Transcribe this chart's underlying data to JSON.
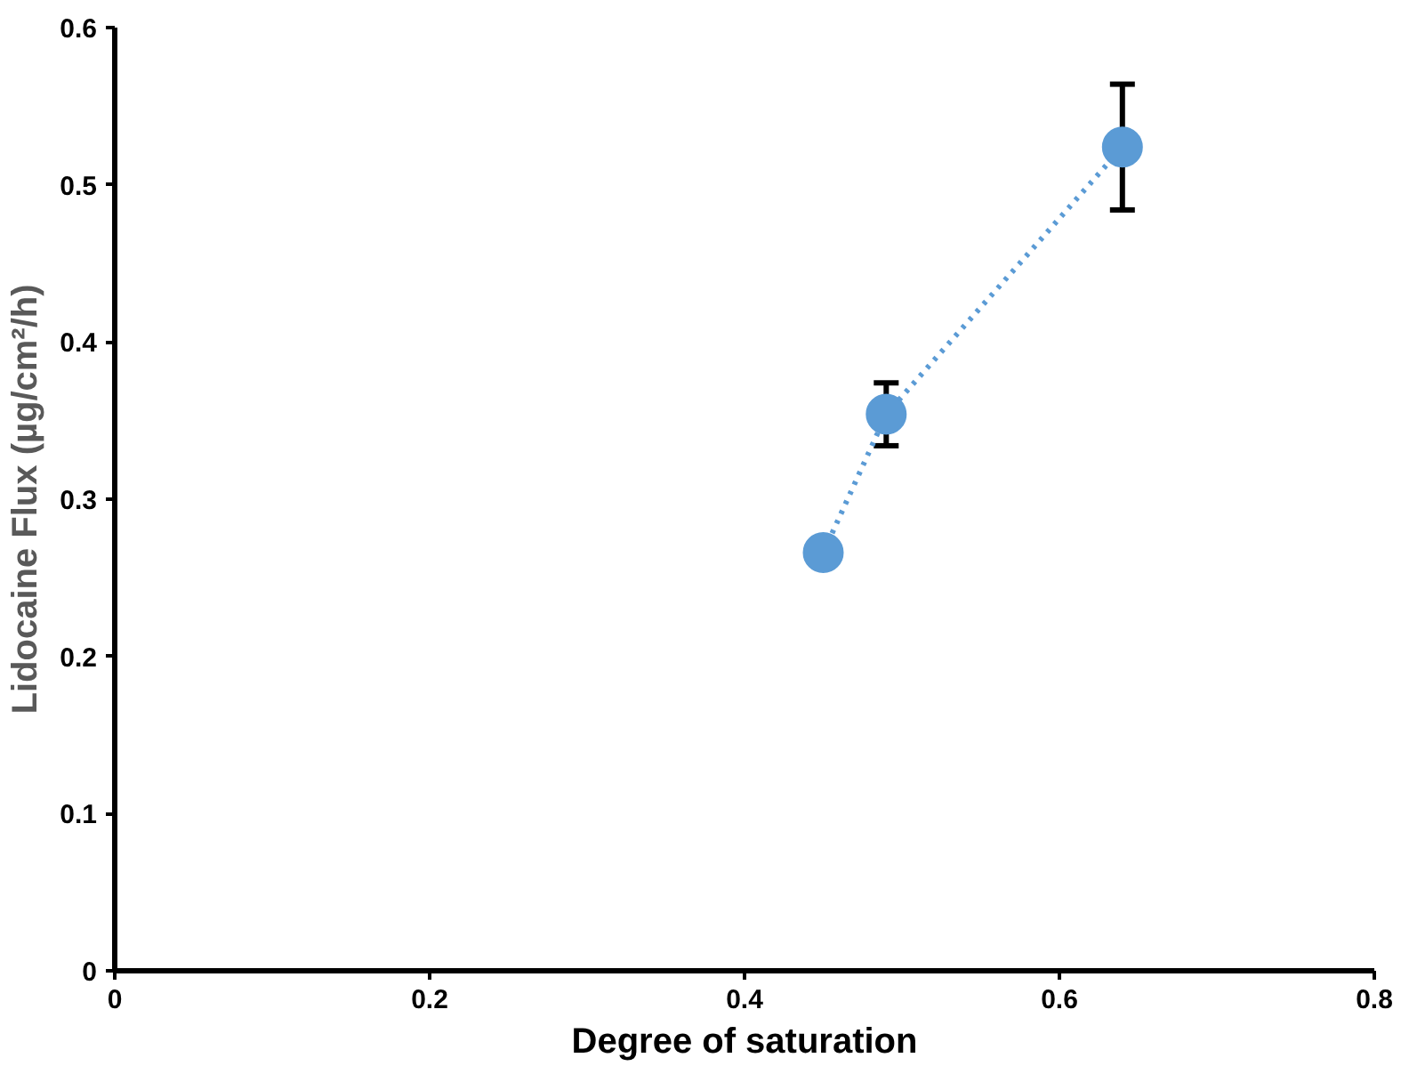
{
  "chart_data": {
    "type": "line",
    "xlabel": "Degree of saturation",
    "ylabel": "Lidocaine Flux (µg/cm²/h)",
    "x": [
      0.45,
      0.49,
      0.64
    ],
    "series": [
      {
        "color": "#5b9bd5",
        "values": [
          0.266,
          0.354,
          0.524
        ],
        "errors": [
          null,
          0.02,
          0.04
        ]
      }
    ],
    "marker": "circle",
    "line_style": "dotted",
    "grid": false,
    "xlim": [
      0,
      0.8
    ],
    "xticks": [
      0,
      0.2,
      0.4,
      0.6,
      0.8
    ],
    "ylim": [
      0,
      0.6
    ],
    "yticks": [
      0,
      0.1,
      0.2,
      0.3,
      0.4,
      0.5,
      0.6
    ]
  }
}
